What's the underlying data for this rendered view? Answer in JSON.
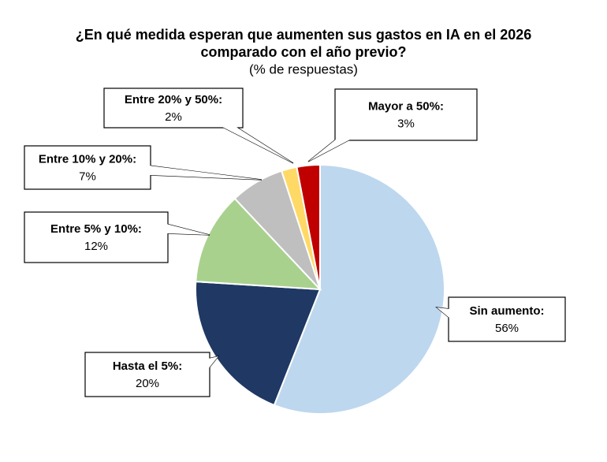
{
  "chart_data": {
    "type": "pie",
    "title": [
      "¿En qué medida esperan que aumenten sus gastos en IA en el 2026",
      "comparado con el año previo?"
    ],
    "subtitle": "(% de respuestas)",
    "categories": [
      "Sin aumento:",
      "Hasta el 5%:",
      "Entre 5% y 10%:",
      "Entre 10% y 20%:",
      "Entre 20% y 50%:",
      "Mayor a 50%:"
    ],
    "values": [
      56,
      20,
      12,
      7,
      2,
      3
    ],
    "value_labels": [
      "56%",
      "20%",
      "12%",
      "7%",
      "2%",
      "3%"
    ],
    "colors": [
      "#bdd7ee",
      "#1f3864",
      "#a9d18e",
      "#bfbfbf",
      "#ffd966",
      "#c00000"
    ]
  }
}
